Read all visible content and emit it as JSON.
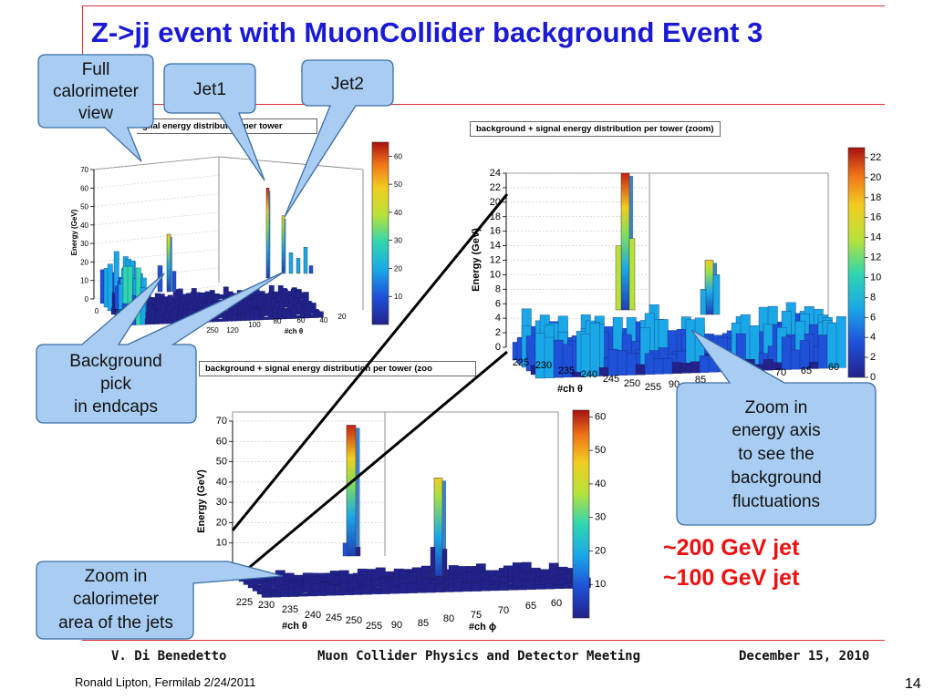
{
  "slide": {
    "title": "Z->jj event with MuonCollider background Event 3",
    "footer_author": "V. Di Benedetto",
    "footer_meeting": "Muon Collider Physics and Detector Meeting",
    "footer_date": "December 15, 2010",
    "credit": "Ronald Lipton, Fermilab 2/24/2011",
    "page_number": "14",
    "jet_notes": [
      "~200 GeV jet",
      "~100 GeV jet"
    ],
    "colors": {
      "title": "#1a1ad6",
      "jet_notes": "#ee1010",
      "callout_fill": "#a9cdf2",
      "rule": "#dd3333"
    }
  },
  "callouts": {
    "full_view": [
      "Full",
      "calorimeter",
      "view"
    ],
    "jet1": [
      "Jet1"
    ],
    "jet2": [
      "Jet2"
    ],
    "background_pick": [
      "Background",
      "pick",
      "in endcaps"
    ],
    "zoom_energy": [
      "Zoom in",
      "energy axis",
      "to see the",
      "background",
      "fluctuations"
    ],
    "zoom_area": [
      "Zoom in",
      "calorimeter",
      "area of the jets"
    ]
  },
  "chart_data": [
    {
      "type": "bar3d",
      "title": "gnal energy distribution per tower",
      "ylabel": "Energy (GeV)",
      "xlabel": "#ch θ",
      "zlim": [
        0,
        70
      ],
      "z_ticks": [
        "0",
        "10",
        "20",
        "30",
        "40",
        "50",
        "60",
        "70"
      ],
      "x_ticks": [
        "0",
        "50",
        "250",
        "120",
        "100",
        "80",
        "60",
        "40",
        "20"
      ],
      "colorbar_ticks": [
        "10",
        "20",
        "30",
        "40",
        "50",
        "60"
      ],
      "colorbar_range": [
        0,
        65
      ],
      "peaks": [
        {
          "label": "Jet1",
          "value": 60
        },
        {
          "label": "Jet2",
          "value": 45
        },
        {
          "label": "Background pick in endcaps",
          "value": 35
        }
      ]
    },
    {
      "type": "bar3d",
      "title": "background + signal energy distribution per tower (zoom)",
      "ylabel": "Energy (GeV)",
      "xlabel": "#ch θ",
      "zlim": [
        0,
        24
      ],
      "z_ticks": [
        "0",
        "2",
        "4",
        "6",
        "8",
        "10",
        "12",
        "14",
        "16",
        "18",
        "20",
        "22",
        "24"
      ],
      "x_ticks": [
        "225",
        "230",
        "235",
        "240",
        "245",
        "250",
        "255",
        "90",
        "85",
        "75",
        "70",
        "65",
        "60"
      ],
      "colorbar_ticks": [
        "0",
        "2",
        "4",
        "6",
        "8",
        "10",
        "12",
        "14",
        "16",
        "18",
        "20",
        "22"
      ],
      "colorbar_range": [
        0,
        23
      ],
      "peaks": [
        {
          "label": "jet 1",
          "value": 24
        },
        {
          "label": "jet 2",
          "value": 12
        }
      ]
    },
    {
      "type": "bar3d",
      "title": "background + signal energy distribution per tower (zoo",
      "ylabel": "Energy (GeV)",
      "xlabel": "#ch θ",
      "ylabel2": "#ch ϕ",
      "zlim": [
        0,
        70
      ],
      "z_ticks": [
        "10",
        "20",
        "30",
        "40",
        "50",
        "60",
        "70"
      ],
      "x_ticks": [
        "225",
        "230",
        "235",
        "240",
        "245",
        "250",
        "255"
      ],
      "y_ticks": [
        "90",
        "85",
        "80",
        "75",
        "70",
        "65",
        "60"
      ],
      "colorbar_ticks": [
        "10",
        "20",
        "30",
        "40",
        "50",
        "60"
      ],
      "colorbar_range": [
        0,
        62
      ],
      "peaks": [
        {
          "label": "~200 GeV jet",
          "value": 68
        },
        {
          "label": "~100 GeV jet",
          "value": 42
        }
      ]
    }
  ]
}
